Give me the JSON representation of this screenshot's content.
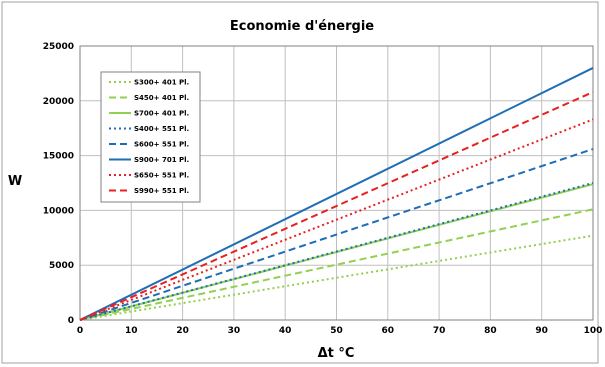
{
  "chart_data": {
    "type": "line",
    "title": "Economie d'énergie",
    "xlabel": "Δt °C",
    "ylabel": "W",
    "xlim": [
      0,
      100
    ],
    "ylim": [
      0,
      25000
    ],
    "x_ticks": [
      0,
      10,
      20,
      30,
      40,
      50,
      60,
      70,
      80,
      90,
      100
    ],
    "y_ticks": [
      0,
      5000,
      10000,
      15000,
      20000,
      25000
    ],
    "grid": true,
    "legend_position": "top-left",
    "series": [
      {
        "name": "S300+ 401 Pl.",
        "color": "#92d050",
        "dash": "dotted",
        "x": [
          0,
          100
        ],
        "y": [
          0,
          7700
        ]
      },
      {
        "name": "S450+ 401 Pl.",
        "color": "#92d050",
        "dash": "dashed",
        "x": [
          0,
          100
        ],
        "y": [
          0,
          10100
        ]
      },
      {
        "name": "S700+ 401 Pl.",
        "color": "#92d050",
        "dash": "solid",
        "x": [
          0,
          100
        ],
        "y": [
          0,
          12400
        ]
      },
      {
        "name": "S400+ 551 Pl.",
        "color": "#1f6eb5",
        "dash": "dotted",
        "x": [
          0,
          100
        ],
        "y": [
          0,
          12500
        ]
      },
      {
        "name": "S600+ 551 Pl.",
        "color": "#1f6eb5",
        "dash": "dashed",
        "x": [
          0,
          100
        ],
        "y": [
          0,
          15600
        ]
      },
      {
        "name": "S900+ 701 Pl.",
        "color": "#1f6eb5",
        "dash": "solid",
        "x": [
          0,
          100
        ],
        "y": [
          0,
          23000
        ]
      },
      {
        "name": "S650+ 551 Pl.",
        "color": "#e8201f",
        "dash": "dotted",
        "x": [
          0,
          100
        ],
        "y": [
          0,
          18300
        ]
      },
      {
        "name": "S990+ 551 Pl.",
        "color": "#e8201f",
        "dash": "dashed",
        "x": [
          0,
          100
        ],
        "y": [
          0,
          20800
        ]
      }
    ]
  }
}
